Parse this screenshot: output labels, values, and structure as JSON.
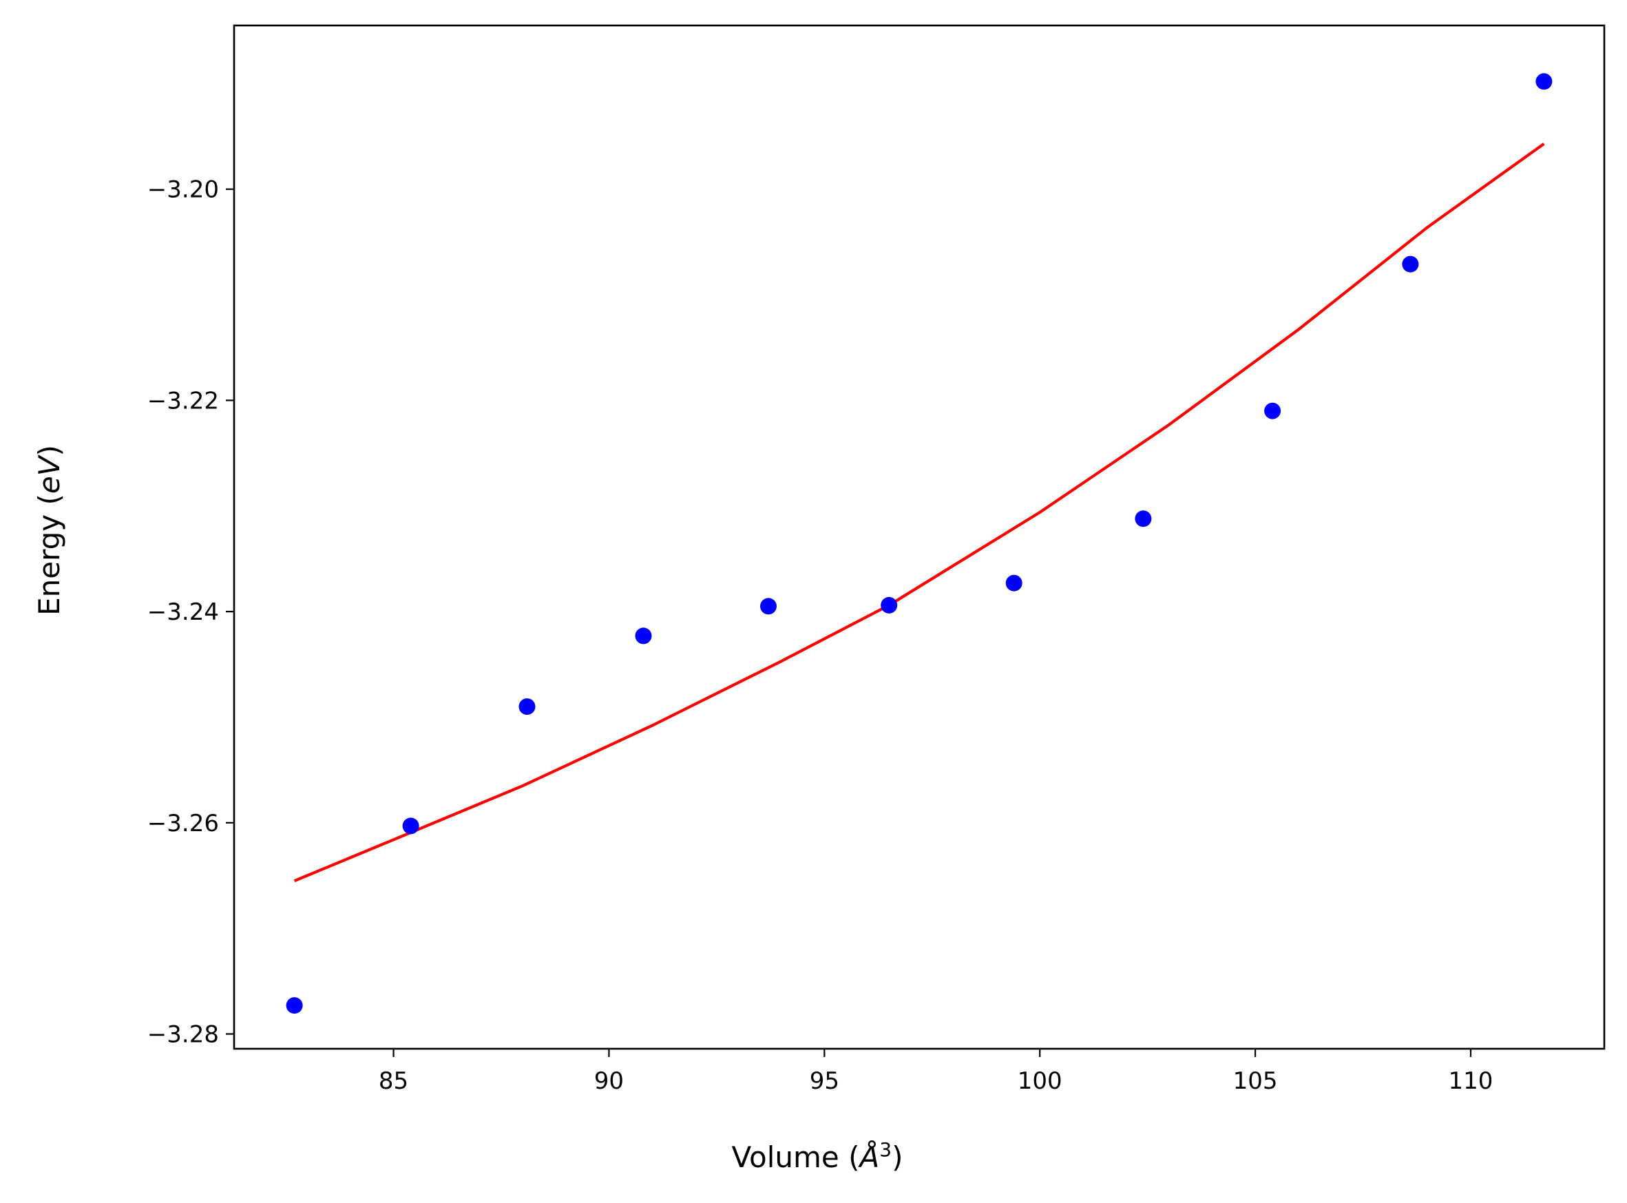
{
  "chart_data": {
    "type": "scatter",
    "xlabel": {
      "pre": "Volume (",
      "unit": "Å",
      "sup": "3",
      "post": ")"
    },
    "ylabel": {
      "pre": "Energy (",
      "unit": "eV",
      "post": ")"
    },
    "xlim": [
      81.3,
      113.1
    ],
    "ylim": [
      -3.2814,
      -3.1845
    ],
    "x_ticks": [
      85,
      90,
      95,
      100,
      105,
      110
    ],
    "x_tick_labels": [
      "85",
      "90",
      "95",
      "100",
      "105",
      "110"
    ],
    "y_ticks": [
      -3.28,
      -3.26,
      -3.24,
      -3.22,
      -3.2
    ],
    "y_tick_labels": [
      "−3.28",
      "−3.26",
      "−3.24",
      "−3.22",
      "−3.20"
    ],
    "grid": false,
    "series": [
      {
        "kind": "scatter",
        "color": "#0000ff",
        "x": [
          82.7,
          85.4,
          88.1,
          90.8,
          93.7,
          96.5,
          99.4,
          102.4,
          105.4,
          108.6,
          111.7
        ],
        "y": [
          -3.2773,
          -3.2603,
          -3.249,
          -3.2423,
          -3.2395,
          -3.2394,
          -3.2373,
          -3.2312,
          -3.221,
          -3.2071,
          -3.1898
        ]
      },
      {
        "kind": "line",
        "color": "#ff0000",
        "x": [
          82.7,
          85.0,
          88.0,
          91.0,
          94.0,
          96.5,
          100.0,
          103.0,
          106.0,
          109.0,
          111.7
        ],
        "y": [
          -3.2655,
          -3.2616,
          -3.2565,
          -3.2508,
          -3.2447,
          -3.2394,
          -3.2306,
          -3.2223,
          -3.2133,
          -3.2036,
          -3.1957
        ]
      }
    ]
  }
}
